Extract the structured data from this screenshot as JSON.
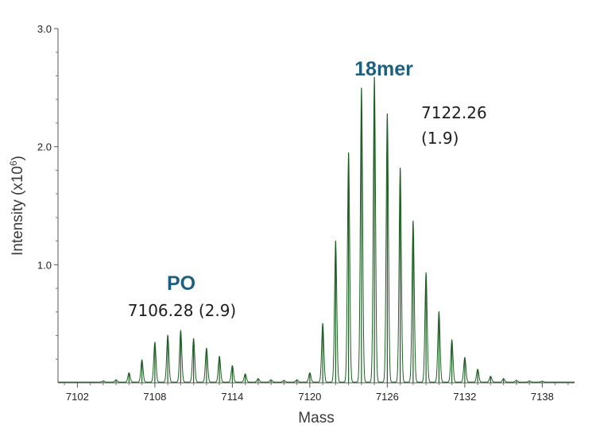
{
  "chart_data": {
    "type": "line",
    "xlabel": "Mass",
    "ylabel": "Intensity (x10",
    "ylabel_sup": "6",
    "ylabel_close": ")",
    "xlim": [
      7100.5,
      7140.5
    ],
    "ylim": [
      0,
      3.0
    ],
    "x_ticks": [
      7102,
      7108,
      7114,
      7120,
      7126,
      7132,
      7138
    ],
    "x_tick_labels": [
      "7102",
      "7108",
      "7114",
      "7120",
      "7126",
      "7132",
      "7138"
    ],
    "y_ticks": [
      1.0,
      2.0,
      3.0
    ],
    "y_tick_labels": [
      "1.0",
      "2.0",
      "3.0"
    ],
    "line_color": "#1f5f24",
    "grid": false,
    "series": [
      {
        "peaks": [
          {
            "x": 7104.0,
            "y": 0.01
          },
          {
            "x": 7105.0,
            "y": 0.02
          },
          {
            "x": 7106.0,
            "y": 0.08
          },
          {
            "x": 7107.0,
            "y": 0.19
          },
          {
            "x": 7108.0,
            "y": 0.34
          },
          {
            "x": 7109.0,
            "y": 0.4
          },
          {
            "x": 7110.0,
            "y": 0.44
          },
          {
            "x": 7111.0,
            "y": 0.37
          },
          {
            "x": 7112.0,
            "y": 0.29
          },
          {
            "x": 7113.0,
            "y": 0.22
          },
          {
            "x": 7114.0,
            "y": 0.14
          },
          {
            "x": 7115.0,
            "y": 0.07
          },
          {
            "x": 7116.0,
            "y": 0.03
          },
          {
            "x": 7117.0,
            "y": 0.02
          },
          {
            "x": 7118.0,
            "y": 0.015
          },
          {
            "x": 7119.0,
            "y": 0.02
          },
          {
            "x": 7120.0,
            "y": 0.08
          },
          {
            "x": 7121.0,
            "y": 0.5
          },
          {
            "x": 7122.0,
            "y": 1.2
          },
          {
            "x": 7123.0,
            "y": 1.95
          },
          {
            "x": 7124.0,
            "y": 2.5
          },
          {
            "x": 7125.0,
            "y": 2.59
          },
          {
            "x": 7126.0,
            "y": 2.28
          },
          {
            "x": 7127.0,
            "y": 1.82
          },
          {
            "x": 7128.0,
            "y": 1.37
          },
          {
            "x": 7129.0,
            "y": 0.93
          },
          {
            "x": 7130.0,
            "y": 0.6
          },
          {
            "x": 7131.0,
            "y": 0.36
          },
          {
            "x": 7132.0,
            "y": 0.21
          },
          {
            "x": 7133.0,
            "y": 0.11
          },
          {
            "x": 7134.0,
            "y": 0.05
          },
          {
            "x": 7135.0,
            "y": 0.03
          },
          {
            "x": 7136.0,
            "y": 0.015
          },
          {
            "x": 7137.0,
            "y": 0.01
          },
          {
            "x": 7138.0,
            "y": 0.008
          }
        ]
      }
    ],
    "annotations": [
      {
        "id": "po",
        "title": "PO",
        "title_color": "#1f5f7e",
        "lines": [
          "7106.28 (2.9)"
        ]
      },
      {
        "id": "18mer",
        "title": "18mer",
        "title_color": "#1f5f7e",
        "lines": [
          "7122.26",
          "(1.9)"
        ]
      }
    ]
  }
}
